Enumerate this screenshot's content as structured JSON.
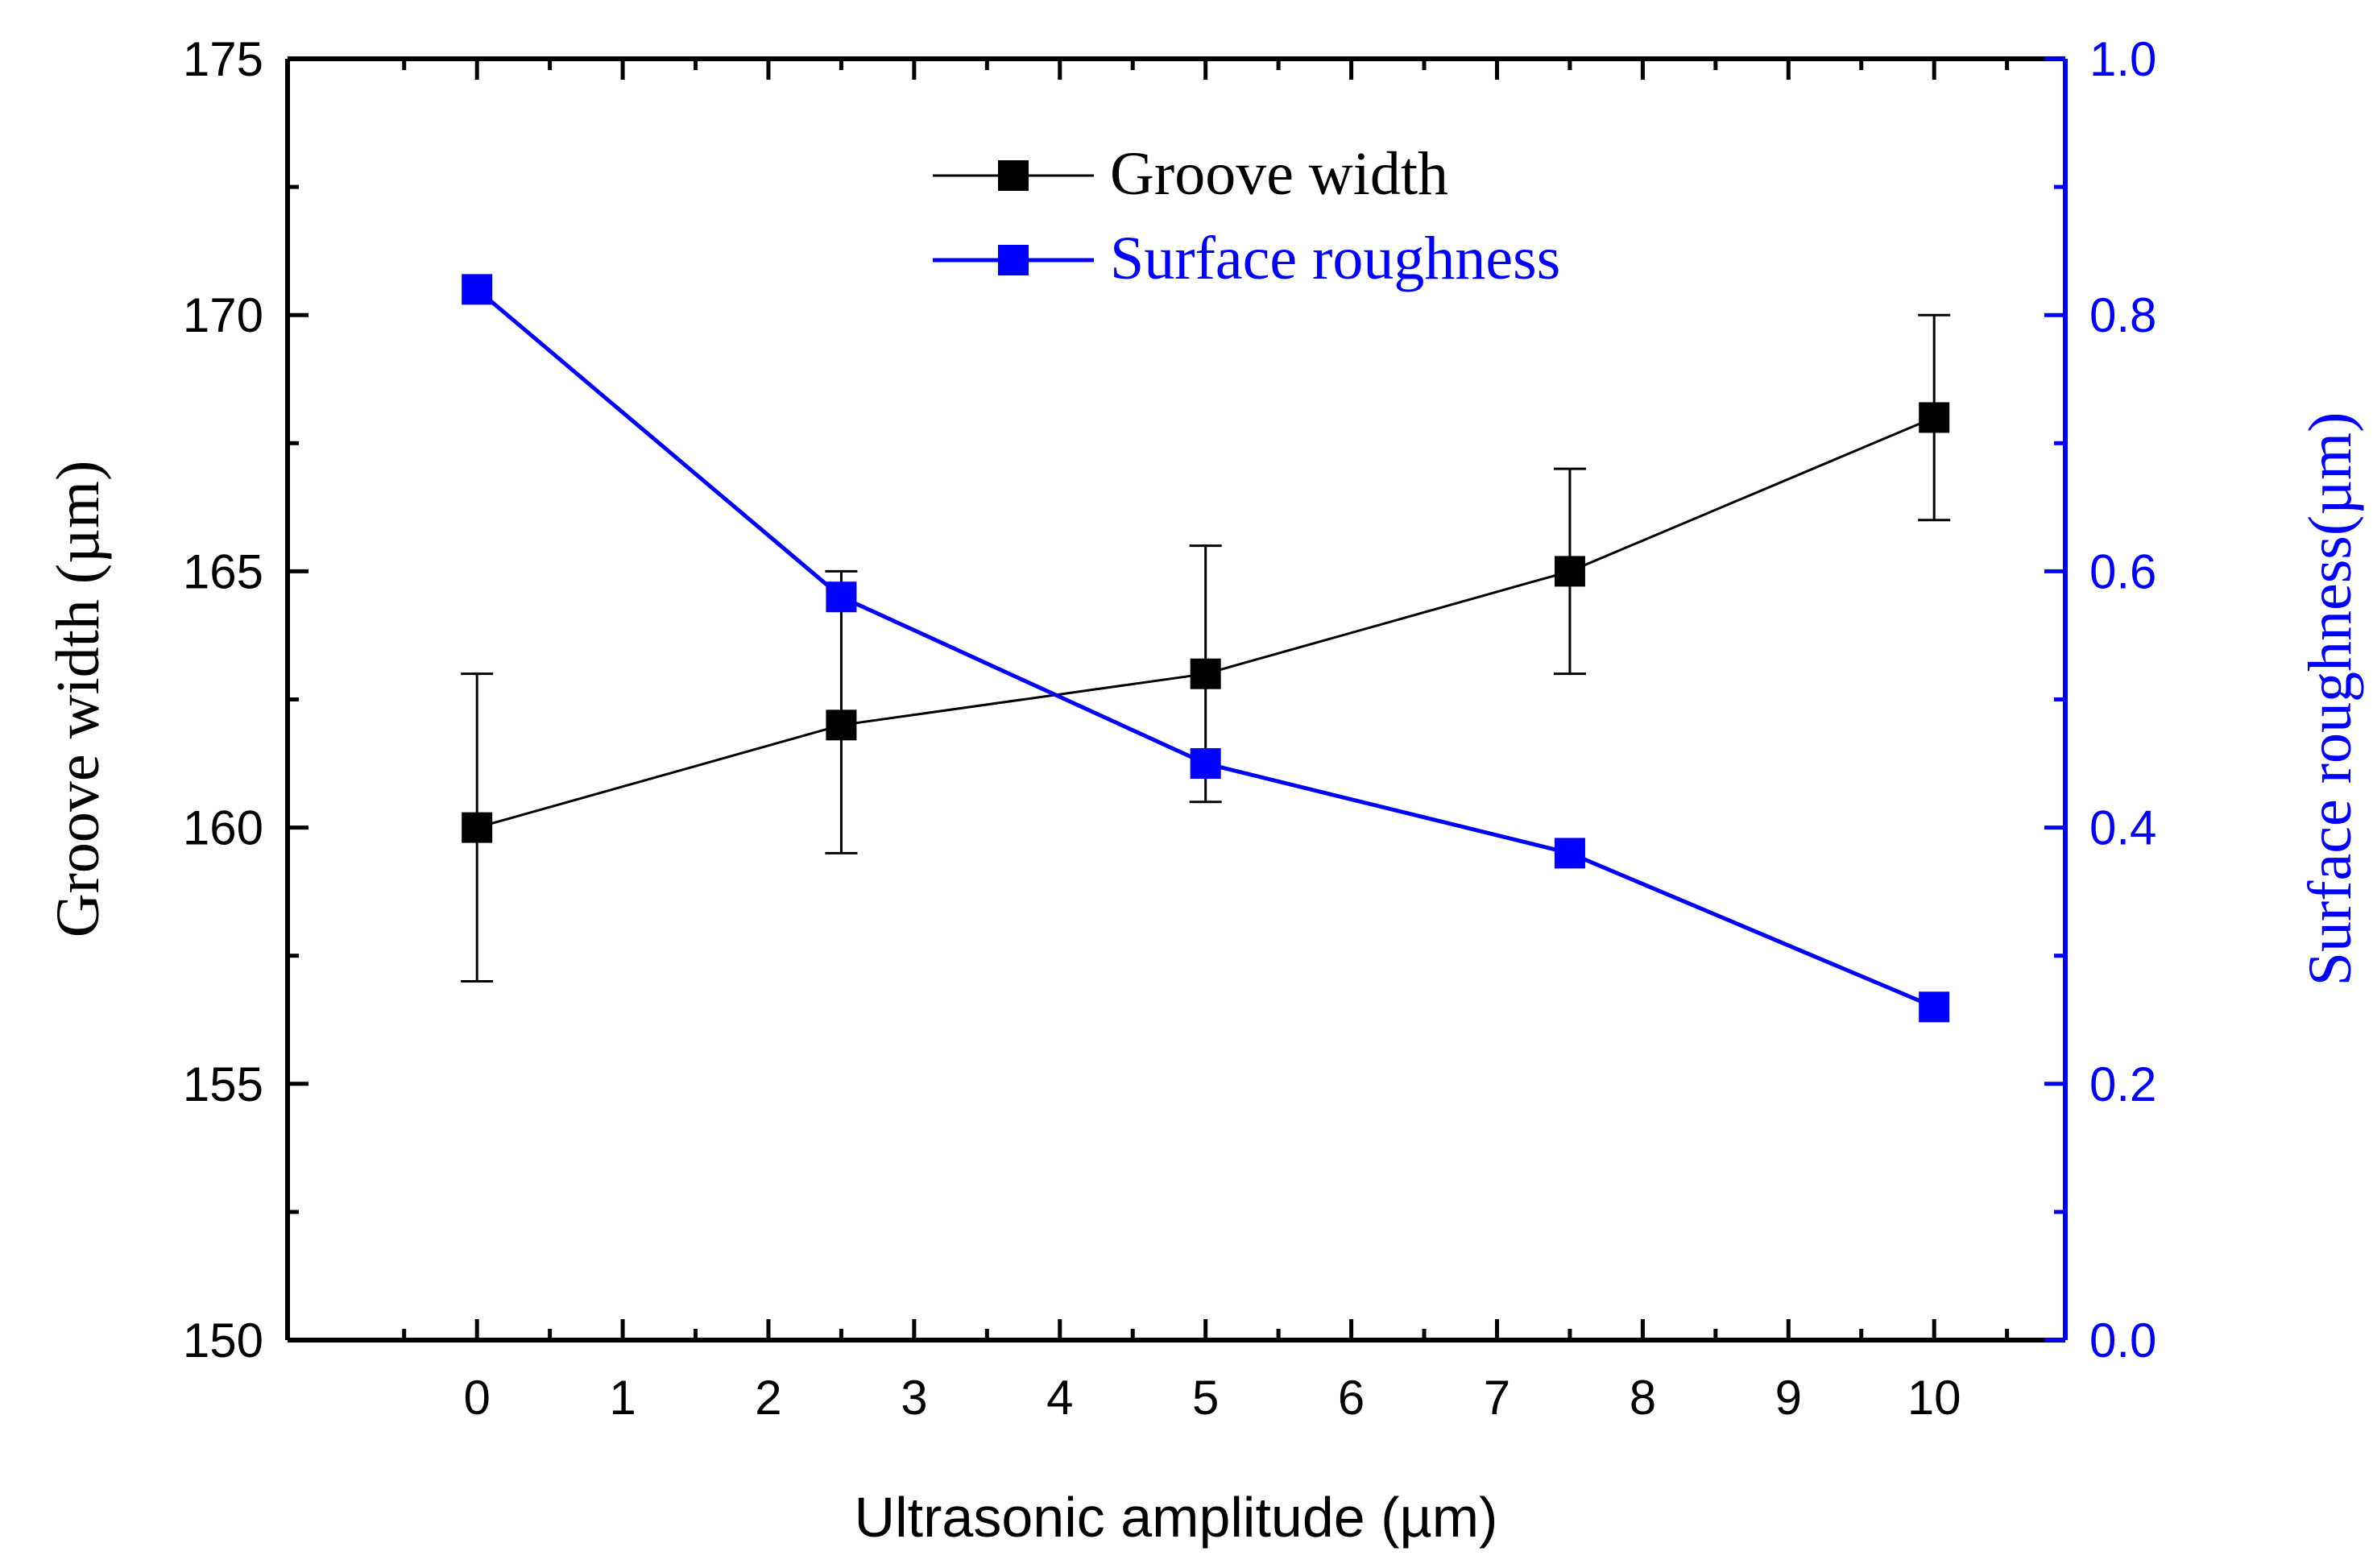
{
  "chart_data": {
    "type": "line",
    "x": [
      0,
      2.5,
      5,
      7.5,
      10
    ],
    "xlabel": "Ultrasonic amplitude (µm)",
    "xlim": [
      -1.3,
      10.9
    ],
    "xticks": [
      "0",
      "1",
      "2",
      "3",
      "4",
      "5",
      "6",
      "7",
      "8",
      "9",
      "10"
    ],
    "ylabel_left": "Groove width (µm)",
    "ylim_left": [
      150,
      175
    ],
    "yticks_left": [
      "150",
      "155",
      "160",
      "165",
      "170",
      "175"
    ],
    "ylabel_right": "Surface roughness(µm)",
    "ylim_right": [
      0.0,
      1.0
    ],
    "yticks_right": [
      "0.0",
      "0.2",
      "0.4",
      "0.6",
      "0.8",
      "1.0"
    ],
    "legend_position": "top-center",
    "series": [
      {
        "name": "Groove width",
        "axis": "left",
        "color": "#000000",
        "marker": "square",
        "values": [
          160,
          162,
          163,
          165,
          168
        ],
        "error_low": [
          157,
          159.5,
          160.5,
          163,
          166
        ],
        "error_high": [
          163,
          165,
          165.5,
          167,
          170
        ]
      },
      {
        "name": "Surface roughness",
        "axis": "right",
        "color": "#0000ff",
        "marker": "square",
        "values": [
          0.82,
          0.58,
          0.45,
          0.38,
          0.26
        ]
      }
    ]
  }
}
